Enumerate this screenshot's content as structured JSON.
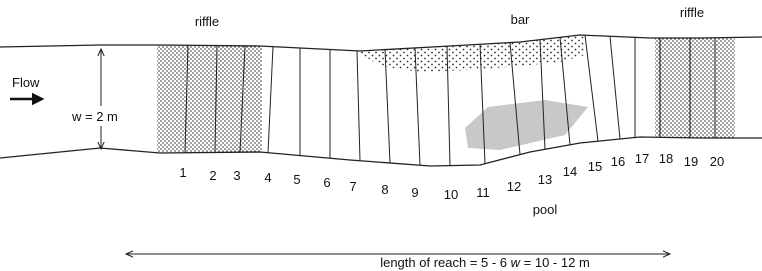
{
  "labels": {
    "riffle_left": "riffle",
    "bar": "bar",
    "riffle_right": "riffle",
    "flow": "Flow",
    "width": "w = 2 m",
    "pool": "pool"
  },
  "reach_length": {
    "before": "length of reach = 5 - 6 ",
    "symbol": "w",
    "after": " = 10 - 12 m"
  },
  "transects": [
    "1",
    "2",
    "3",
    "4",
    "5",
    "6",
    "7",
    "8",
    "9",
    "10",
    "11",
    "12",
    "13",
    "14",
    "15",
    "16",
    "17",
    "18",
    "19",
    "20"
  ]
}
